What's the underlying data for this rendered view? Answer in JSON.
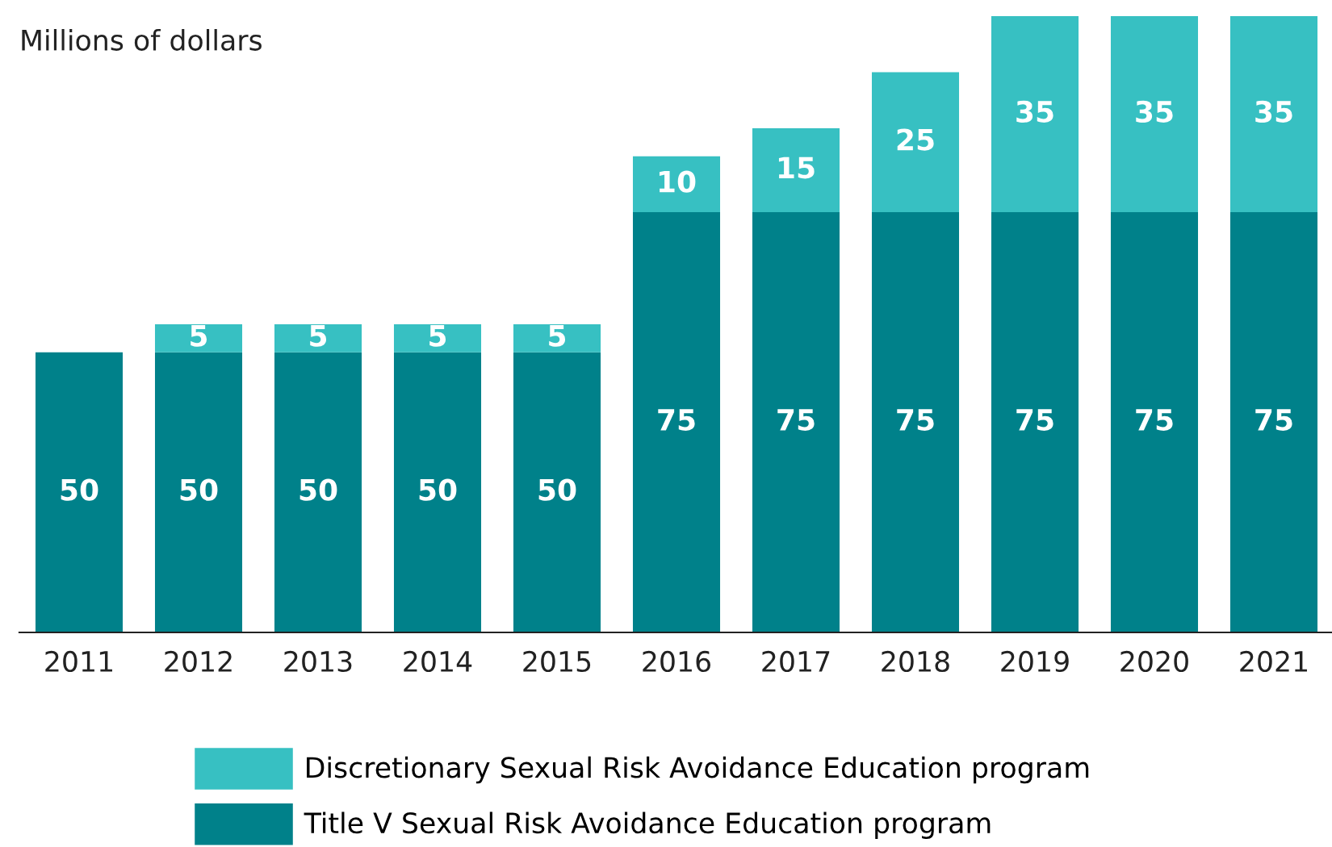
{
  "chart_data": {
    "type": "bar",
    "stacked": true,
    "ylabel": "Millions of dollars",
    "categories": [
      "2011",
      "2012",
      "2013",
      "2014",
      "2015",
      "2016",
      "2017",
      "2018",
      "2019",
      "2020",
      "2021"
    ],
    "series": [
      {
        "name": "Title V Sexual Risk Avoidance Education program",
        "color": "#00818a",
        "values": [
          50,
          50,
          50,
          50,
          50,
          75,
          75,
          75,
          75,
          75,
          75
        ]
      },
      {
        "name": "Discretionary Sexual Risk Avoidance Education program",
        "color": "#37c0c2",
        "values": [
          null,
          5,
          5,
          5,
          5,
          10,
          15,
          25,
          35,
          35,
          35
        ]
      }
    ],
    "data_labels": true,
    "legend": "bottom",
    "grid": false
  }
}
